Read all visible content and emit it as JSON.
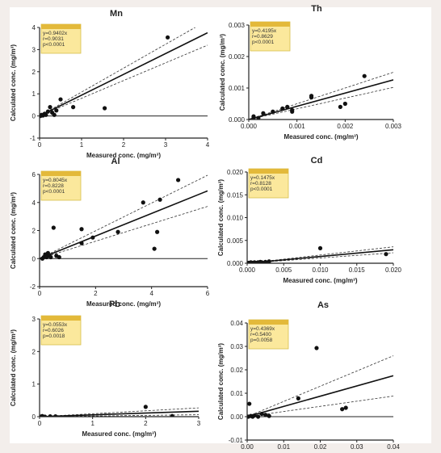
{
  "colors": {
    "background": "#f3eeeb",
    "panel": "#ffffff",
    "legend_fill": "#fbe89c",
    "legend_border": "#d8bf4e",
    "legend_header": "#e3b93a"
  },
  "chart_data": [
    {
      "type": "scatter",
      "title": "Mn",
      "xlabel": "Measured conc. (mg/m³)",
      "ylabel": "Calculated conc. (mg/m³)",
      "xlim": [
        0,
        4
      ],
      "ylim": [
        -1,
        4
      ],
      "xticks": [
        "0",
        "1",
        "2",
        "3",
        "4"
      ],
      "yticks": [
        "-1",
        "0",
        "1",
        "2",
        "3",
        "4"
      ],
      "x": [
        0.02,
        0.05,
        0.08,
        0.12,
        0.15,
        0.2,
        0.25,
        0.3,
        0.35,
        0.4,
        0.5,
        0.8,
        1.55,
        3.05
      ],
      "y": [
        0.0,
        0.05,
        0.02,
        0.1,
        0.05,
        0.2,
        0.4,
        0.15,
        0.05,
        0.25,
        0.75,
        0.4,
        0.35,
        3.55
      ],
      "fit_slope": 0.9402,
      "band": [
        0.8,
        1.08
      ],
      "stats": [
        "y=0.9402x",
        "r=0.9031",
        "p<0.0001"
      ]
    },
    {
      "type": "scatter",
      "title": "Th",
      "xlabel": "Measured conc. (mg/m³)",
      "ylabel": "Calculated conc. (mg/m³)",
      "xlim": [
        0,
        0.003
      ],
      "ylim": [
        0,
        0.003
      ],
      "xticks": [
        "0.000",
        "0.001",
        "0.002",
        "0.003"
      ],
      "yticks": [
        "0.000",
        "0.001",
        "0.002",
        "0.003"
      ],
      "x": [
        0.0001,
        0.0001,
        0.0002,
        0.0003,
        0.0005,
        0.0007,
        0.0008,
        0.0009,
        0.0009,
        0.0013,
        0.0013,
        0.0019,
        0.002,
        0.0024
      ],
      "y": [
        5e-05,
        0.0001,
        5e-05,
        0.0002,
        0.00025,
        0.00035,
        0.0004,
        0.00025,
        0.0003,
        0.0007,
        0.00075,
        0.0004,
        0.0005,
        0.00138
      ],
      "fit_slope": 0.4195,
      "band": [
        0.34,
        0.5
      ],
      "stats": [
        "y=0.4195x",
        "r=0.8629",
        "p<0.0001"
      ]
    },
    {
      "type": "scatter",
      "title": "Al",
      "xlabel": "Measured conc. (mg/m³)",
      "ylabel": "Calculated conc. (mg/m³)",
      "xlim": [
        0,
        6
      ],
      "ylim": [
        -2,
        6
      ],
      "xticks": [
        "0",
        "2",
        "4",
        "6"
      ],
      "yticks": [
        "-2",
        "0",
        "2",
        "4",
        "6"
      ],
      "x": [
        0.1,
        0.15,
        0.2,
        0.25,
        0.3,
        0.35,
        0.4,
        0.5,
        0.6,
        0.7,
        1.5,
        1.5,
        1.9,
        2.8,
        3.7,
        4.1,
        4.2,
        4.3,
        4.95
      ],
      "y": [
        0.0,
        0.1,
        0.3,
        0.1,
        0.4,
        0.2,
        0.1,
        2.2,
        0.2,
        0.1,
        2.1,
        1.1,
        1.5,
        1.9,
        4.0,
        0.7,
        1.9,
        4.2,
        5.6
      ],
      "fit_slope": 0.8045,
      "band": [
        0.62,
        0.99
      ],
      "stats": [
        "y=0.8045x",
        "r=0.8228",
        "p<0.0001"
      ]
    },
    {
      "type": "scatter",
      "title": "Cd",
      "xlabel": "Measured conc. (mg/m³)",
      "ylabel": "Calculated conc. (mg/m³)",
      "xlim": [
        0,
        0.02
      ],
      "ylim": [
        0,
        0.02
      ],
      "xticks": [
        "0.000",
        "0.005",
        "0.010",
        "0.015",
        "0.020"
      ],
      "yticks": [
        "0.000",
        "0.005",
        "0.010",
        "0.015",
        "0.020"
      ],
      "x": [
        0.0002,
        0.0005,
        0.0007,
        0.001,
        0.0012,
        0.0015,
        0.0018,
        0.002,
        0.0025,
        0.003,
        0.01,
        0.019
      ],
      "y": [
        0.0001,
        0.0002,
        0.0001,
        0.0002,
        0.0001,
        0.0002,
        0.0003,
        0.0002,
        0.0003,
        0.0004,
        0.0033,
        0.002
      ],
      "fit_slope": 0.1475,
      "band": [
        0.115,
        0.18
      ],
      "stats": [
        "y=0.1475x",
        "r=0.8128",
        "p<0.0001"
      ]
    },
    {
      "type": "scatter",
      "title": "Pb",
      "xlabel": "Measured conc. (mg/m³)",
      "ylabel": "Calculated conc. (mg/m³)",
      "xlim": [
        0,
        3
      ],
      "ylim": [
        0,
        3
      ],
      "xticks": [
        "0",
        "1",
        "2",
        "3"
      ],
      "yticks": [
        "0",
        "1",
        "2",
        "3"
      ],
      "x": [
        0.02,
        0.05,
        0.1,
        0.2,
        0.3,
        0.35,
        2.0,
        2.5
      ],
      "y": [
        0.0,
        0.02,
        0.0,
        0.01,
        0.01,
        -0.02,
        0.3,
        0.02
      ],
      "fit_slope": 0.0553,
      "band": [
        0.02,
        0.09
      ],
      "stats": [
        "y=0.0553x",
        "r=0.6026",
        "p=0.0018"
      ]
    },
    {
      "type": "scatter",
      "title": "As",
      "xlabel": "Measured conc. (mg/m³)",
      "ylabel": "Calculated conc. (mg/m³)",
      "xlim": [
        0,
        0.04
      ],
      "ylim": [
        -0.01,
        0.04
      ],
      "xticks": [
        "0.00",
        "0.01",
        "0.02",
        "0.03",
        "0.04"
      ],
      "yticks": [
        "-0.01",
        "0.00",
        "0.01",
        "0.02",
        "0.03",
        "0.04"
      ],
      "x": [
        0.0003,
        0.0006,
        0.001,
        0.0015,
        0.002,
        0.003,
        0.004,
        0.005,
        0.006,
        0.014,
        0.019,
        0.026,
        0.027
      ],
      "y": [
        0.0,
        0.0055,
        0.0003,
        0.0,
        0.0005,
        0.0,
        0.0012,
        0.0008,
        0.0003,
        0.0078,
        0.0293,
        0.0032,
        0.0038
      ],
      "fit_slope": 0.4369,
      "band": [
        0.22,
        0.65
      ],
      "stats": [
        "y=0.4369x",
        "r=0.5400",
        "p=0.0058"
      ]
    }
  ]
}
